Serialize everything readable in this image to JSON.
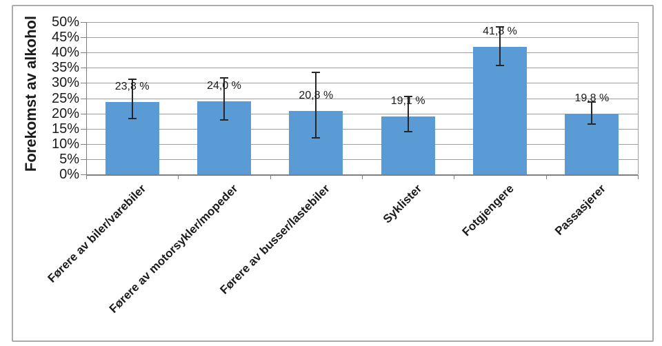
{
  "chart_data": {
    "type": "bar",
    "title": "",
    "xlabel": "",
    "ylabel": "Forekomst av alkohol",
    "ylim": [
      0,
      50
    ],
    "ytick_step": 5,
    "ytick_labels": [
      "0%",
      "5%",
      "10%",
      "15%",
      "20%",
      "25%",
      "30%",
      "35%",
      "40%",
      "45%",
      "50%"
    ],
    "grid": true,
    "legend": "none",
    "categories": [
      "Førere av biler/varebiler",
      "Førere av motorsykler/mopeder",
      "Førere av busser/lastebiler",
      "Syklister",
      "Fotgjengere",
      "Passasjerer"
    ],
    "series": [
      {
        "name": "Forekomst av alkohol",
        "values": [
          23.8,
          24.0,
          20.8,
          19.1,
          41.8,
          19.8
        ],
        "data_labels": [
          "23,8 %",
          "24,0 %",
          "20,8 %",
          "19,1 %",
          "41,8 %",
          "19,8 %"
        ],
        "error_low": [
          18.3,
          17.9,
          12.0,
          14.0,
          35.7,
          16.5
        ],
        "error_high": [
          31.2,
          31.6,
          33.5,
          25.5,
          48.4,
          23.8
        ]
      }
    ]
  },
  "colors": {
    "bar_fill": "#5B9BD5",
    "error_bar": "#262626",
    "gridline": "#9e9e9e",
    "axis": "#7f7f7f",
    "frame": "#ababab",
    "text": "#1a1a1a"
  }
}
